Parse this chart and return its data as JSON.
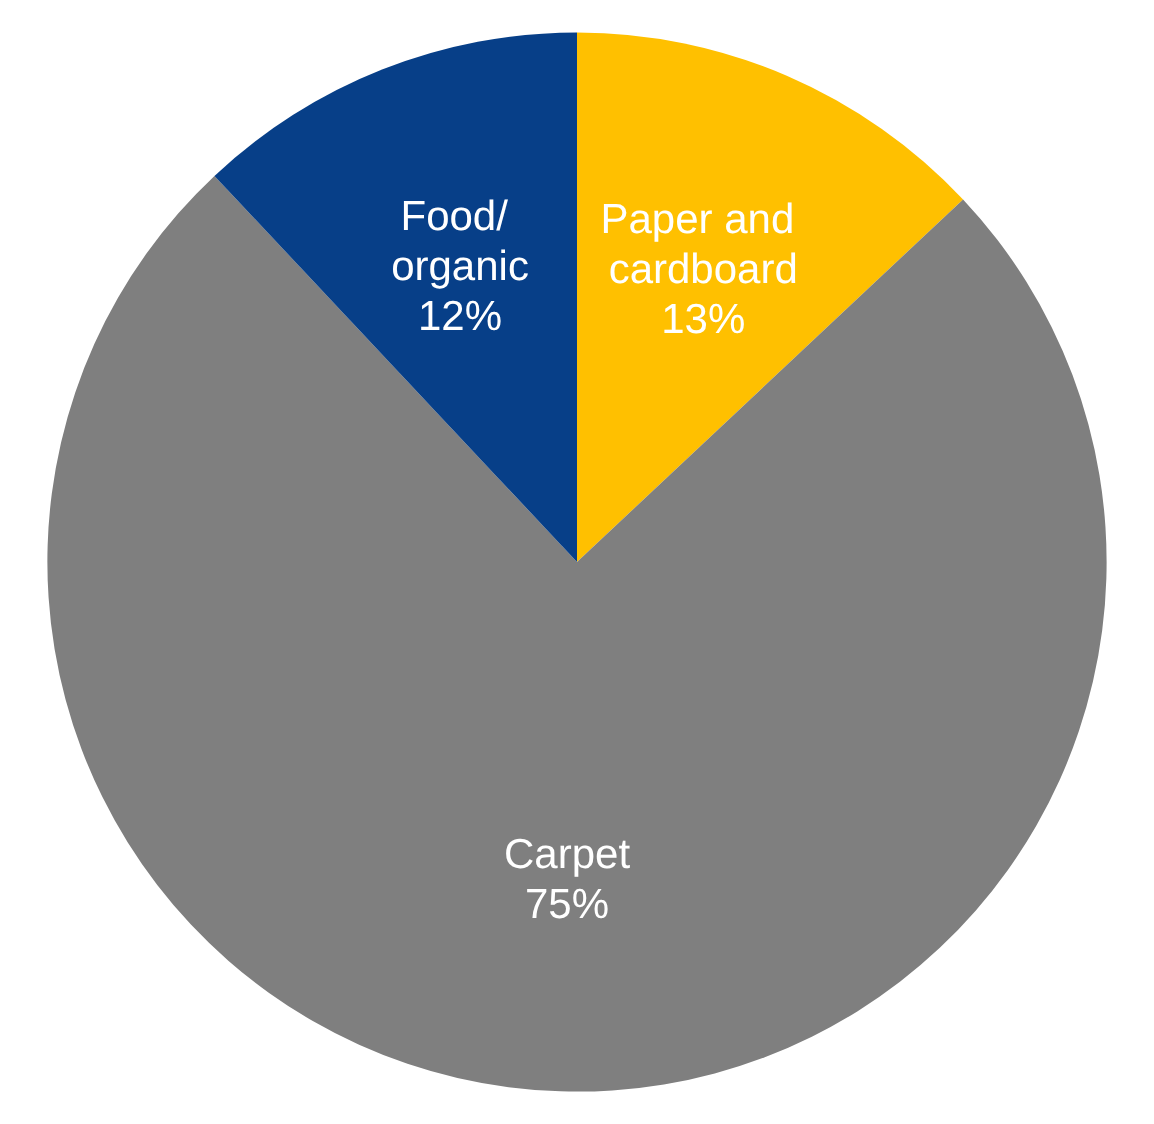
{
  "chart_data": {
    "type": "pie",
    "categories": [
      "Paper and cardboard",
      "Carpet",
      "Food/ organic"
    ],
    "values": [
      13,
      75,
      12
    ],
    "colors": [
      "#ffc000",
      "#7f7f7f",
      "#073f88"
    ],
    "value_labels": [
      "13%",
      "75%",
      "12%"
    ],
    "legend": false
  }
}
